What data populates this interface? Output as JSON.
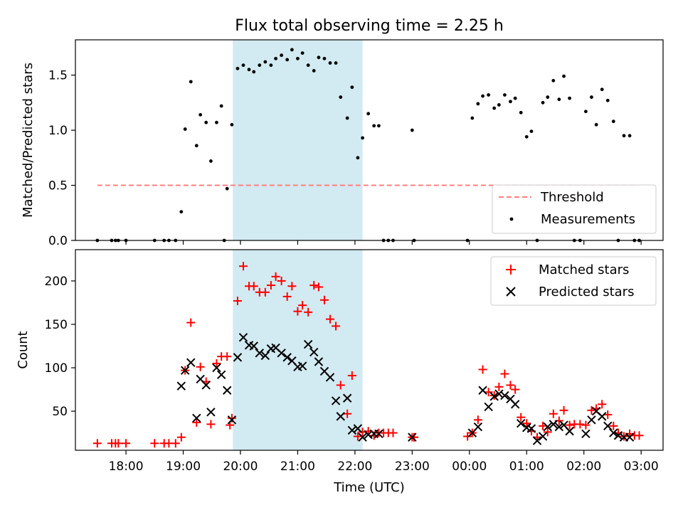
{
  "title": "Flux total observing time = 2.25 h",
  "chart_data": [
    {
      "type": "scatter",
      "ylabel": "Matched/Predicted stars",
      "xlabel": "",
      "x_is_time_utc": true,
      "xlim": [
        "17:07",
        "03:23"
      ],
      "ylim": [
        0.0,
        1.82
      ],
      "yticks": [
        0.0,
        0.5,
        1.0,
        1.5
      ],
      "yticklabels": [
        "0.0",
        "0.5",
        "1.0",
        "1.5"
      ],
      "shaded_interval": [
        "19:52",
        "22:08"
      ],
      "shade_color": "#add8e6",
      "threshold": {
        "name": "Threshold",
        "value": 0.5,
        "x": [
          "17:30",
          "02:56"
        ],
        "color": "#ff7f7f"
      },
      "legend": {
        "position": "lower-right",
        "entries": [
          "Threshold",
          "Measurements"
        ]
      },
      "series": [
        {
          "name": "Measurements",
          "color": "#000000",
          "points": [
            [
              "17:30",
              0.0
            ],
            [
              "17:45",
              0.0
            ],
            [
              "17:49",
              0.0
            ],
            [
              "17:52",
              0.0
            ],
            [
              "18:00",
              0.0
            ],
            [
              "18:30",
              0.0
            ],
            [
              "18:40",
              0.0
            ],
            [
              "18:45",
              0.0
            ],
            [
              "18:52",
              0.0
            ],
            [
              "18:58",
              0.26
            ],
            [
              "19:02",
              1.01
            ],
            [
              "19:08",
              1.44
            ],
            [
              "19:14",
              0.86
            ],
            [
              "19:18",
              1.14
            ],
            [
              "19:24",
              1.07
            ],
            [
              "19:29",
              0.72
            ],
            [
              "19:35",
              1.07
            ],
            [
              "19:40",
              1.22
            ],
            [
              "19:43",
              0.0
            ],
            [
              "19:46",
              0.47
            ],
            [
              "19:51",
              1.05
            ],
            [
              "19:57",
              1.56
            ],
            [
              "20:03",
              1.59
            ],
            [
              "20:09",
              1.55
            ],
            [
              "20:14",
              1.53
            ],
            [
              "20:20",
              1.59
            ],
            [
              "20:26",
              1.62
            ],
            [
              "20:32",
              1.59
            ],
            [
              "20:37",
              1.65
            ],
            [
              "20:43",
              1.68
            ],
            [
              "20:49",
              1.64
            ],
            [
              "20:54",
              1.73
            ],
            [
              "21:00",
              1.65
            ],
            [
              "21:05",
              1.7
            ],
            [
              "21:11",
              1.59
            ],
            [
              "21:17",
              1.54
            ],
            [
              "21:22",
              1.66
            ],
            [
              "21:28",
              1.65
            ],
            [
              "21:34",
              1.61
            ],
            [
              "21:40",
              1.61
            ],
            [
              "21:45",
              1.3
            ],
            [
              "21:52",
              1.11
            ],
            [
              "21:57",
              1.39
            ],
            [
              "22:03",
              0.75
            ],
            [
              "22:08",
              0.93
            ],
            [
              "22:14",
              1.15
            ],
            [
              "22:20",
              1.04
            ],
            [
              "22:25",
              1.04
            ],
            [
              "22:30",
              0.0
            ],
            [
              "22:35",
              0.0
            ],
            [
              "22:40",
              0.0
            ],
            [
              "23:00",
              1.0
            ],
            [
              "23:02",
              0.0
            ],
            [
              "23:58",
              0.0
            ],
            [
              "00:03",
              1.11
            ],
            [
              "00:09",
              1.24
            ],
            [
              "00:14",
              1.31
            ],
            [
              "00:20",
              1.32
            ],
            [
              "00:26",
              1.2
            ],
            [
              "00:31",
              1.23
            ],
            [
              "00:37",
              1.32
            ],
            [
              "00:43",
              1.26
            ],
            [
              "00:48",
              1.29
            ],
            [
              "00:54",
              1.16
            ],
            [
              "01:00",
              0.94
            ],
            [
              "01:05",
              0.99
            ],
            [
              "01:11",
              0.0
            ],
            [
              "01:17",
              1.25
            ],
            [
              "01:22",
              1.3
            ],
            [
              "01:28",
              1.45
            ],
            [
              "01:34",
              1.28
            ],
            [
              "01:39",
              1.49
            ],
            [
              "01:45",
              1.29
            ],
            [
              "01:50",
              0.0
            ],
            [
              "01:56",
              0.0
            ],
            [
              "02:02",
              1.17
            ],
            [
              "02:08",
              1.3
            ],
            [
              "02:13",
              1.05
            ],
            [
              "02:19",
              1.37
            ],
            [
              "02:25",
              1.27
            ],
            [
              "02:31",
              1.08
            ],
            [
              "02:36",
              0.0
            ],
            [
              "02:42",
              0.95
            ],
            [
              "02:48",
              0.95
            ],
            [
              "02:53",
              0.0
            ],
            [
              "02:58",
              0.0
            ]
          ]
        }
      ]
    },
    {
      "type": "scatter",
      "ylabel": "Count",
      "xlabel": "Time (UTC)",
      "x_is_time_utc": true,
      "xlim": [
        "17:07",
        "03:23"
      ],
      "ylim": [
        5,
        236
      ],
      "yticks": [
        50,
        100,
        150,
        200
      ],
      "yticklabels": [
        "50",
        "100",
        "150",
        "200"
      ],
      "xticks": [
        "18:00",
        "19:00",
        "20:00",
        "21:00",
        "22:00",
        "23:00",
        "00:00",
        "01:00",
        "02:00",
        "03:00"
      ],
      "xticklabels": [
        "18:00",
        "19:00",
        "20:00",
        "21:00",
        "22:00",
        "23:00",
        "00:00",
        "01:00",
        "02:00",
        "03:00"
      ],
      "shaded_interval": [
        "19:52",
        "22:08"
      ],
      "shade_color": "#add8e6",
      "legend": {
        "position": "upper-right",
        "entries": [
          "Matched stars",
          "Predicted stars"
        ]
      },
      "series": [
        {
          "name": "Matched stars",
          "marker": "+",
          "color": "#ff0000",
          "points": [
            [
              "17:30",
              13
            ],
            [
              "17:45",
              13
            ],
            [
              "17:49",
              13
            ],
            [
              "17:52",
              13
            ],
            [
              "18:00",
              13
            ],
            [
              "18:30",
              13
            ],
            [
              "18:40",
              13
            ],
            [
              "18:45",
              13
            ],
            [
              "18:52",
              13
            ],
            [
              "18:58",
              20
            ],
            [
              "19:02",
              97
            ],
            [
              "19:08",
              152
            ],
            [
              "19:14",
              37
            ],
            [
              "19:18",
              101
            ],
            [
              "19:24",
              84
            ],
            [
              "19:29",
              35
            ],
            [
              "19:35",
              105
            ],
            [
              "19:40",
              113
            ],
            [
              "19:46",
              113
            ],
            [
              "19:49",
              34
            ],
            [
              "19:51",
              42
            ],
            [
              "19:57",
              177
            ],
            [
              "20:03",
              217
            ],
            [
              "20:09",
              194
            ],
            [
              "20:14",
              194
            ],
            [
              "20:20",
              187
            ],
            [
              "20:26",
              187
            ],
            [
              "20:32",
              195
            ],
            [
              "20:37",
              205
            ],
            [
              "20:43",
              200
            ],
            [
              "20:49",
              182
            ],
            [
              "20:54",
              194
            ],
            [
              "21:00",
              165
            ],
            [
              "21:05",
              172
            ],
            [
              "21:11",
              164
            ],
            [
              "21:17",
              195
            ],
            [
              "21:22",
              193
            ],
            [
              "21:28",
              178
            ],
            [
              "21:34",
              156
            ],
            [
              "21:40",
              148
            ],
            [
              "21:45",
              80
            ],
            [
              "21:52",
              47
            ],
            [
              "21:57",
              91
            ],
            [
              "22:03",
              21
            ],
            [
              "22:08",
              26
            ],
            [
              "22:14",
              27
            ],
            [
              "22:20",
              22
            ],
            [
              "22:25",
              25
            ],
            [
              "22:30",
              25
            ],
            [
              "22:35",
              25
            ],
            [
              "22:40",
              25
            ],
            [
              "23:00",
              20
            ],
            [
              "23:02",
              20
            ],
            [
              "23:58",
              21
            ],
            [
              "00:03",
              25
            ],
            [
              "00:09",
              40
            ],
            [
              "00:14",
              98
            ],
            [
              "00:20",
              72
            ],
            [
              "00:26",
              68
            ],
            [
              "00:31",
              78
            ],
            [
              "00:37",
              93
            ],
            [
              "00:43",
              80
            ],
            [
              "00:48",
              75
            ],
            [
              "00:54",
              43
            ],
            [
              "01:00",
              36
            ],
            [
              "01:05",
              27
            ],
            [
              "01:11",
              20
            ],
            [
              "01:17",
              33
            ],
            [
              "01:22",
              26
            ],
            [
              "01:28",
              47
            ],
            [
              "01:34",
              39
            ],
            [
              "01:39",
              51
            ],
            [
              "01:45",
              34
            ],
            [
              "01:50",
              35
            ],
            [
              "01:56",
              35
            ],
            [
              "02:02",
              34
            ],
            [
              "02:08",
              51
            ],
            [
              "02:13",
              53
            ],
            [
              "02:19",
              58
            ],
            [
              "02:25",
              46
            ],
            [
              "02:31",
              33
            ],
            [
              "02:36",
              25
            ],
            [
              "02:42",
              21
            ],
            [
              "02:48",
              24
            ],
            [
              "02:53",
              22
            ],
            [
              "02:58",
              22
            ]
          ]
        },
        {
          "name": "Predicted stars",
          "marker": "x",
          "color": "#000000",
          "points": [
            [
              "18:58",
              79
            ],
            [
              "19:02",
              97
            ],
            [
              "19:08",
              106
            ],
            [
              "19:14",
              42
            ],
            [
              "19:18",
              87
            ],
            [
              "19:24",
              80
            ],
            [
              "19:29",
              49
            ],
            [
              "19:35",
              100
            ],
            [
              "19:40",
              92
            ],
            [
              "19:46",
              74
            ],
            [
              "19:51",
              40
            ],
            [
              "19:57",
              112
            ],
            [
              "20:03",
              135
            ],
            [
              "20:09",
              126
            ],
            [
              "20:14",
              125
            ],
            [
              "20:20",
              117
            ],
            [
              "20:26",
              114
            ],
            [
              "20:32",
              122
            ],
            [
              "20:37",
              123
            ],
            [
              "20:43",
              117
            ],
            [
              "20:49",
              112
            ],
            [
              "20:54",
              108
            ],
            [
              "21:00",
              101
            ],
            [
              "21:05",
              102
            ],
            [
              "21:11",
              127
            ],
            [
              "21:17",
              118
            ],
            [
              "21:22",
              107
            ],
            [
              "21:28",
              96
            ],
            [
              "21:34",
              89
            ],
            [
              "21:40",
              62
            ],
            [
              "21:45",
              44
            ],
            [
              "21:52",
              65
            ],
            [
              "21:57",
              28
            ],
            [
              "22:03",
              30
            ],
            [
              "22:08",
              20
            ],
            [
              "22:14",
              23
            ],
            [
              "22:20",
              24
            ],
            [
              "22:25",
              24
            ],
            [
              "23:00",
              20
            ],
            [
              "00:03",
              25
            ],
            [
              "00:09",
              32
            ],
            [
              "00:14",
              74
            ],
            [
              "00:20",
              55
            ],
            [
              "00:26",
              67
            ],
            [
              "00:31",
              70
            ],
            [
              "00:37",
              68
            ],
            [
              "00:43",
              64
            ],
            [
              "00:48",
              58
            ],
            [
              "00:54",
              36
            ],
            [
              "01:00",
              31
            ],
            [
              "01:05",
              30
            ],
            [
              "01:11",
              16
            ],
            [
              "01:17",
              21
            ],
            [
              "01:22",
              32
            ],
            [
              "01:28",
              35
            ],
            [
              "01:34",
              32
            ],
            [
              "01:39",
              34
            ],
            [
              "01:45",
              27
            ],
            [
              "02:02",
              24
            ],
            [
              "02:08",
              40
            ],
            [
              "02:13",
              50
            ],
            [
              "02:19",
              44
            ],
            [
              "02:25",
              33
            ],
            [
              "02:31",
              25
            ],
            [
              "02:36",
              22
            ],
            [
              "02:42",
              20
            ],
            [
              "02:48",
              20
            ]
          ]
        }
      ]
    }
  ]
}
